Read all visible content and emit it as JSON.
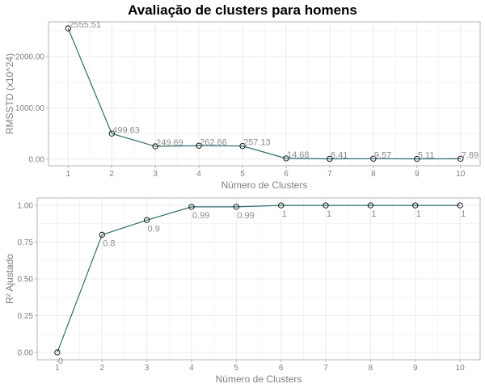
{
  "title": "Avaliação de clusters para homens",
  "colors": {
    "line": "#2f6b6b",
    "point_stroke": "#000000",
    "grid": "#ebebeb",
    "panel_border": "#b3b3b3",
    "text": "#7f7f7f"
  },
  "chart_data": [
    {
      "type": "line",
      "xlabel": "Número de Clusters",
      "ylabel": "RMSSTD (x10^24)",
      "x": [
        1,
        2,
        3,
        4,
        5,
        6,
        7,
        8,
        9,
        10
      ],
      "series": [
        {
          "values": [
            2555.51,
            499.63,
            249.69,
            262.66,
            257.13,
            14.68,
            6.41,
            9.57,
            5.11,
            7.89
          ]
        }
      ],
      "data_labels": [
        "2555.51",
        "499.63",
        "249.69",
        "262.66",
        "257.13",
        "14.68",
        "6.41",
        "9.57",
        "5.11",
        "7.89"
      ],
      "yticks": [
        0,
        1000,
        2000
      ],
      "ytick_labels": [
        "0.00",
        "1000.00",
        "2000.00"
      ],
      "xticks": [
        1,
        2,
        3,
        4,
        5,
        6,
        7,
        8,
        9,
        10
      ],
      "xtick_labels": [
        "1",
        "2",
        "3",
        "4",
        "5",
        "6",
        "7",
        "8",
        "9",
        "10"
      ],
      "xlim": [
        0.55,
        10.45
      ],
      "ylim": [
        -128,
        2683
      ],
      "label_position": "above-right",
      "grid": true
    },
    {
      "type": "line",
      "xlabel": "Número de Clusters",
      "ylabel": "R² Ajustado",
      "x": [
        1,
        2,
        3,
        4,
        5,
        6,
        7,
        8,
        9,
        10
      ],
      "series": [
        {
          "values": [
            0,
            0.8,
            0.9,
            0.99,
            0.99,
            1,
            1,
            1,
            1,
            1
          ]
        }
      ],
      "data_labels": [
        "0",
        "0.8",
        "0.9",
        "0.99",
        "0.99",
        "1",
        "1",
        "1",
        "1",
        "1"
      ],
      "yticks": [
        0,
        0.25,
        0.5,
        0.75,
        1
      ],
      "ytick_labels": [
        "0.00",
        "0.25",
        "0.50",
        "0.75",
        "1.00"
      ],
      "xticks": [
        1,
        2,
        3,
        4,
        5,
        6,
        7,
        8,
        9,
        10
      ],
      "xtick_labels": [
        "1",
        "2",
        "3",
        "4",
        "5",
        "6",
        "7",
        "8",
        "9",
        "10"
      ],
      "xlim": [
        0.55,
        10.45
      ],
      "ylim": [
        -0.05,
        1.05
      ],
      "label_position": "below-right",
      "grid": true
    }
  ]
}
